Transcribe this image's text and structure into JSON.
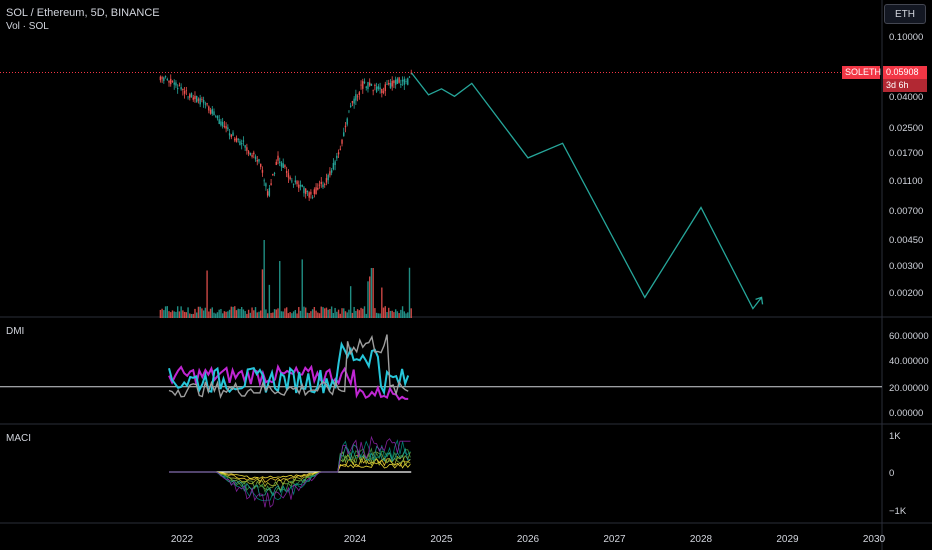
{
  "header": {
    "symbol_title": "SOL / Ethereum, 5D, BINANCE",
    "volume_label": "Vol · SOL",
    "currency_button": "ETH"
  },
  "price_badge": {
    "symbol": "SOLETH",
    "price": "0.05908",
    "countdown": "3d 6h"
  },
  "panes": {
    "dmi_label": "DMI",
    "maci_label": "MACI"
  },
  "colors": {
    "background": "#000000",
    "candle_up": "#26a69a",
    "candle_down": "#ef5350",
    "projection": "#26a69a",
    "badge": "#f23645",
    "dmi_pink": "#c026d3",
    "dmi_teal": "#26c6da",
    "dmi_grey": "#9e9e9e"
  },
  "price_axis": {
    "ticks": [
      "0.10000",
      "0.04000",
      "0.02500",
      "0.01700",
      "0.01100",
      "0.00700",
      "0.00450",
      "0.00300",
      "0.00200"
    ]
  },
  "dmi_axis": {
    "ticks": [
      "60.00000",
      "40.00000",
      "20.00000",
      "0.00000"
    ]
  },
  "maci_axis": {
    "ticks": [
      "1K",
      "0",
      "−1K"
    ]
  },
  "time_axis": {
    "ticks": [
      "2022",
      "2023",
      "2024",
      "2025",
      "2026",
      "2027",
      "2028",
      "2029",
      "2030"
    ]
  },
  "chart_data": {
    "type": "line",
    "scale": "log",
    "symbol": "SOLETH",
    "current_price": 0.05908,
    "price_history": [
      {
        "t": 2021.75,
        "v": 0.055
      },
      {
        "t": 2021.9,
        "v": 0.05
      },
      {
        "t": 2022.1,
        "v": 0.042
      },
      {
        "t": 2022.3,
        "v": 0.035
      },
      {
        "t": 2022.5,
        "v": 0.025
      },
      {
        "t": 2022.7,
        "v": 0.02
      },
      {
        "t": 2022.9,
        "v": 0.015
      },
      {
        "t": 2023.0,
        "v": 0.009
      },
      {
        "t": 2023.1,
        "v": 0.016
      },
      {
        "t": 2023.3,
        "v": 0.011
      },
      {
        "t": 2023.5,
        "v": 0.009
      },
      {
        "t": 2023.7,
        "v": 0.012
      },
      {
        "t": 2023.85,
        "v": 0.02
      },
      {
        "t": 2023.95,
        "v": 0.035
      },
      {
        "t": 2024.1,
        "v": 0.05
      },
      {
        "t": 2024.3,
        "v": 0.045
      },
      {
        "t": 2024.5,
        "v": 0.052
      },
      {
        "t": 2024.6,
        "v": 0.05
      },
      {
        "t": 2024.65,
        "v": 0.059
      }
    ],
    "projection": [
      {
        "t": 2024.65,
        "v": 0.059
      },
      {
        "t": 2024.85,
        "v": 0.042
      },
      {
        "t": 2025.0,
        "v": 0.046
      },
      {
        "t": 2025.15,
        "v": 0.041
      },
      {
        "t": 2025.35,
        "v": 0.05
      },
      {
        "t": 2026.0,
        "v": 0.016
      },
      {
        "t": 2026.4,
        "v": 0.02
      },
      {
        "t": 2027.35,
        "v": 0.0019
      },
      {
        "t": 2028.0,
        "v": 0.0075
      },
      {
        "t": 2028.6,
        "v": 0.0016
      },
      {
        "t": 2028.7,
        "v": 0.0019
      }
    ],
    "dmi_reference_level": 20,
    "dmi_ylim": [
      0,
      65
    ],
    "maci_ylim": [
      -1300,
      1300
    ],
    "price_ylim": [
      0.0016,
      0.12
    ]
  }
}
